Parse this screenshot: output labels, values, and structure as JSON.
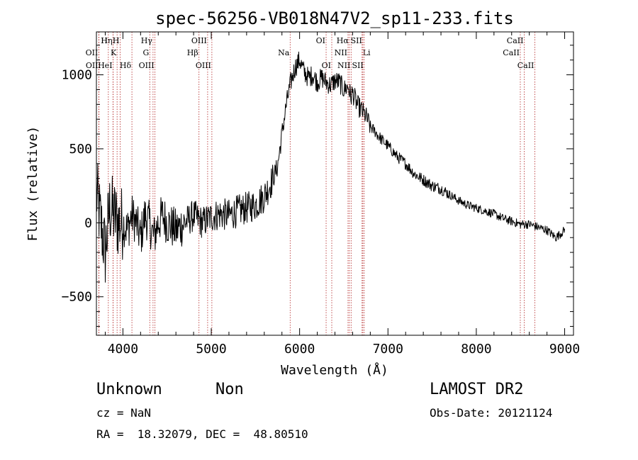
{
  "chart_data": {
    "type": "line",
    "title": "spec-56256-VB018N47V2_sp11-233.fits",
    "xlabel": "Wavelength (Å)",
    "ylabel": "Flux (relative)",
    "xlim": [
      3700,
      9100
    ],
    "ylim": [
      -760,
      1290
    ],
    "xticks": [
      {
        "value": 4000,
        "label": "4000"
      },
      {
        "value": 5000,
        "label": "5000"
      },
      {
        "value": 6000,
        "label": "6000"
      },
      {
        "value": 7000,
        "label": "7000"
      },
      {
        "value": 8000,
        "label": "8000"
      },
      {
        "value": 9000,
        "label": "9000"
      }
    ],
    "yticks": [
      {
        "value": -500,
        "label": "−500"
      },
      {
        "value": 0,
        "label": "0"
      },
      {
        "value": 500,
        "label": "500"
      },
      {
        "value": 1000,
        "label": "1000"
      }
    ],
    "grid": false,
    "line_color": "#000000",
    "marker_color": "#b22222",
    "series": [
      {
        "x": [
          3700,
          3750,
          3800,
          3850,
          3900,
          3950,
          4000,
          4050,
          4100,
          4150,
          4200,
          4250,
          4300,
          4350,
          4400,
          4450,
          4500,
          4600,
          4700,
          4800,
          4900,
          5000,
          5100,
          5200,
          5300,
          5400,
          5500,
          5600,
          5700,
          5750,
          5800,
          5850,
          5900,
          5950,
          6000,
          6050,
          6100,
          6150,
          6200,
          6250,
          6300,
          6350,
          6400,
          6450,
          6500,
          6550,
          6580,
          6600,
          6650,
          6700,
          6750,
          6800,
          6850,
          6900,
          6950,
          7000,
          7100,
          7200,
          7300,
          7400,
          7500,
          7600,
          7700,
          7800,
          7900,
          8000,
          8100,
          8200,
          8300,
          8400,
          8500,
          8600,
          8700,
          8800,
          8900,
          9000
        ],
        "y": [
          200,
          0,
          -200,
          100,
          50,
          0,
          0,
          -50,
          50,
          0,
          -100,
          50,
          0,
          -100,
          0,
          50,
          0,
          -50,
          0,
          50,
          0,
          40,
          60,
          50,
          80,
          100,
          120,
          180,
          300,
          380,
          600,
          800,
          950,
          1050,
          1100,
          1020,
          980,
          1000,
          950,
          980,
          950,
          930,
          960,
          950,
          900,
          920,
          850,
          880,
          800,
          760,
          720,
          650,
          620,
          580,
          550,
          520,
          450,
          400,
          330,
          290,
          250,
          230,
          190,
          150,
          120,
          100,
          80,
          60,
          30,
          10,
          -10,
          -10,
          -30,
          -50,
          -100,
          -50
        ]
      }
    ],
    "lines": [
      {
        "wavelength": 3727,
        "label": "OII",
        "row": 2,
        "side": "left"
      },
      {
        "wavelength": 3729,
        "label": "OII",
        "row": 3,
        "side": "left"
      },
      {
        "wavelength": 3835,
        "label": "H",
        "row": 1,
        "side": "left"
      },
      {
        "wavelength": 3889,
        "label": "Hη",
        "row": 1,
        "side": "left"
      },
      {
        "wavelength": 3889,
        "label": "HeI",
        "row": 3,
        "side": "left"
      },
      {
        "wavelength": 3934,
        "label": "K",
        "row": 2,
        "side": "left"
      },
      {
        "wavelength": 3969,
        "label": "H",
        "row": 1,
        "side": "left"
      },
      {
        "wavelength": 4102,
        "label": "Hδ",
        "row": 3,
        "side": "left"
      },
      {
        "wavelength": 4304,
        "label": "G",
        "row": 2,
        "side": "left"
      },
      {
        "wavelength": 4341,
        "label": "Hγ",
        "row": 1,
        "side": "left"
      },
      {
        "wavelength": 4363,
        "label": "OIII",
        "row": 3,
        "side": "left"
      },
      {
        "wavelength": 4861,
        "label": "Hβ",
        "row": 2,
        "side": "left"
      },
      {
        "wavelength": 4959,
        "label": "OIII",
        "row": 1,
        "side": "left"
      },
      {
        "wavelength": 5007,
        "label": "OIII",
        "row": 3,
        "side": "left"
      },
      {
        "wavelength": 5893,
        "label": "Na",
        "row": 2,
        "side": "left"
      },
      {
        "wavelength": 6300,
        "label": "OI",
        "row": 1,
        "side": "left"
      },
      {
        "wavelength": 6364,
        "label": "OI",
        "row": 3,
        "side": "left"
      },
      {
        "wavelength": 6548,
        "label": "NII",
        "row": 2,
        "side": "left"
      },
      {
        "wavelength": 6563,
        "label": "Hα",
        "row": 1,
        "side": "left"
      },
      {
        "wavelength": 6583,
        "label": "NII",
        "row": 3,
        "side": "left"
      },
      {
        "wavelength": 6707,
        "label": "Li",
        "row": 2,
        "side": "right"
      },
      {
        "wavelength": 6716,
        "label": "SII",
        "row": 1,
        "side": "left"
      },
      {
        "wavelength": 6731,
        "label": "SII",
        "row": 3,
        "side": "left"
      },
      {
        "wavelength": 8498,
        "label": "CaII",
        "row": 2,
        "side": "left"
      },
      {
        "wavelength": 8542,
        "label": "CaII",
        "row": 1,
        "side": "left"
      },
      {
        "wavelength": 8662,
        "label": "CaII",
        "row": 3,
        "side": "left"
      }
    ]
  },
  "info": {
    "class": "Unknown",
    "subclass": "Non",
    "survey": "LAMOST DR2",
    "cz": "cz = NaN",
    "obs_date": "Obs-Date: 20121124",
    "coords": "RA =  18.32079, DEC =  48.80510"
  }
}
